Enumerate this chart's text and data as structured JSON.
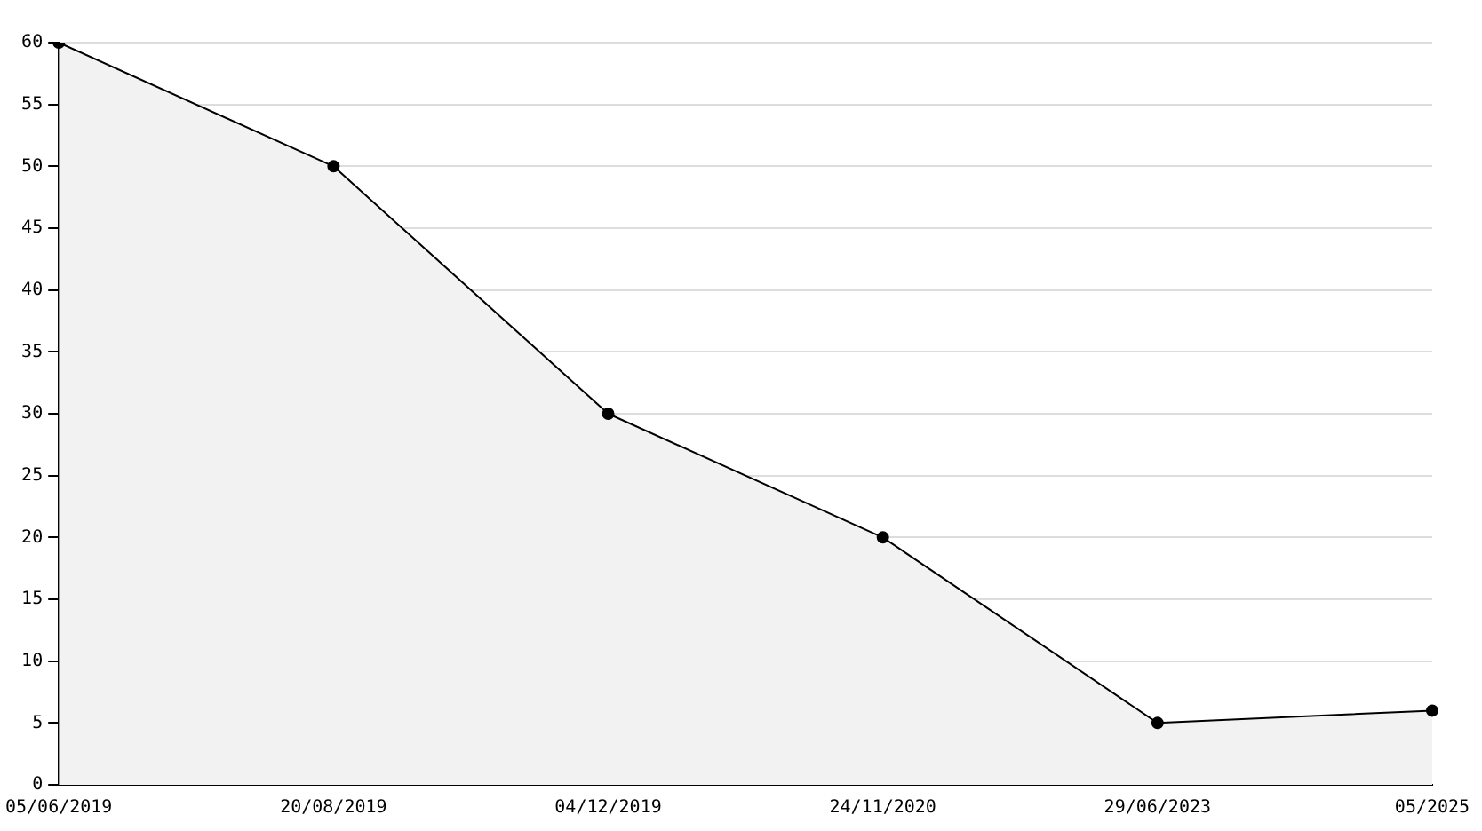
{
  "chart_data": {
    "type": "area",
    "categories": [
      "05/06/2019",
      "20/08/2019",
      "04/12/2019",
      "24/11/2020",
      "29/06/2023",
      "05/2025"
    ],
    "series": [
      {
        "color": "#000000",
        "values": [
          60,
          50,
          30,
          20,
          5,
          6
        ]
      }
    ],
    "ylim": [
      0,
      60
    ],
    "yticks": [
      0,
      5,
      10,
      15,
      20,
      25,
      30,
      35,
      40,
      45,
      50,
      55,
      60
    ],
    "grid": "y",
    "legend": false,
    "marker": "circle",
    "line_style": "solid"
  }
}
